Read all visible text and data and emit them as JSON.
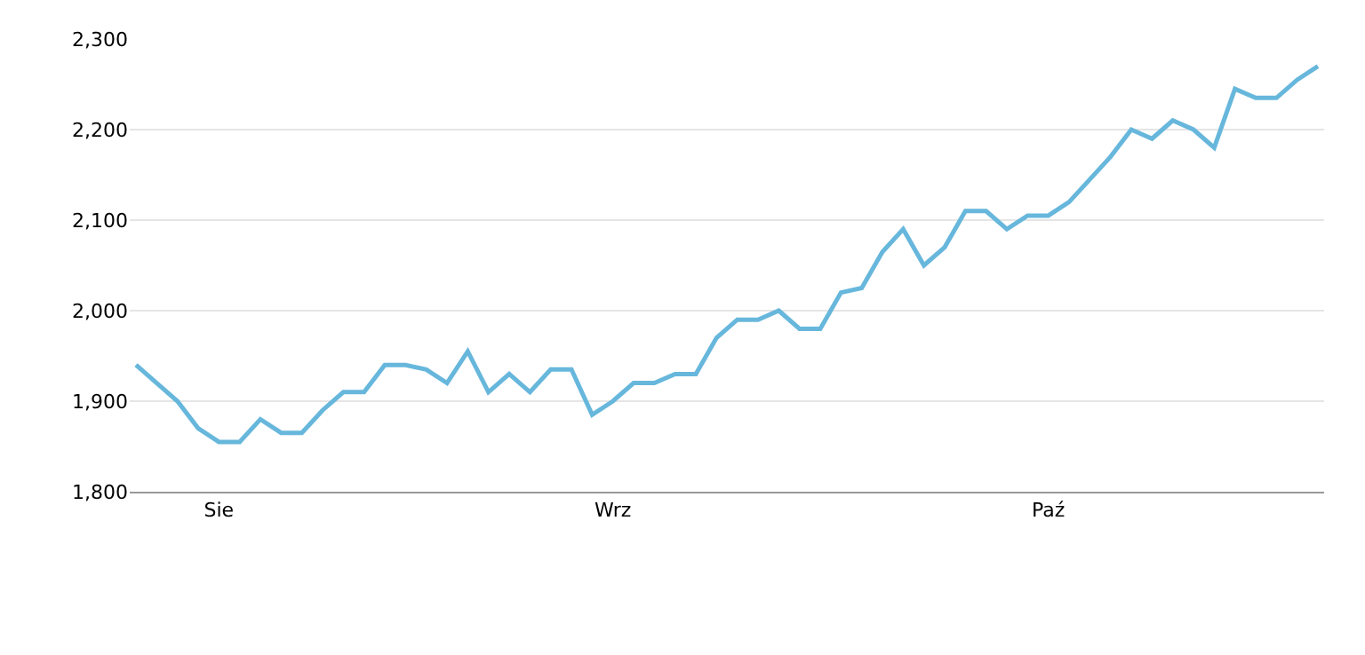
{
  "chart_data": {
    "type": "line",
    "categories": [
      null,
      null,
      null,
      null,
      "Sie",
      null,
      null,
      null,
      null,
      null,
      null,
      null,
      null,
      null,
      null,
      null,
      null,
      null,
      null,
      null,
      null,
      null,
      null,
      "Wrz",
      null,
      null,
      null,
      null,
      null,
      null,
      null,
      null,
      null,
      null,
      null,
      null,
      null,
      null,
      null,
      null,
      null,
      null,
      null,
      null,
      "Paź",
      null,
      null,
      null,
      null,
      null,
      null,
      null,
      null,
      null,
      null,
      null,
      null,
      null
    ],
    "series": [
      {
        "color": "#67b7dc",
        "values": [
          1940,
          1920,
          1900,
          1870,
          1855,
          1855,
          1880,
          1865,
          1865,
          1890,
          1910,
          1910,
          1940,
          1940,
          1935,
          1920,
          1955,
          1910,
          1930,
          1910,
          1935,
          1935,
          1885,
          1900,
          1920,
          1920,
          1930,
          1930,
          1970,
          1990,
          1990,
          2000,
          1980,
          1980,
          2020,
          2025,
          2065,
          2090,
          2050,
          2070,
          2110,
          2110,
          2090,
          2105,
          2105,
          2120,
          2145,
          2170,
          2200,
          2190,
          2210,
          2200,
          2180,
          2245,
          2235,
          2235,
          2255,
          2270
        ]
      }
    ],
    "ylim": [
      1800,
      2300
    ],
    "yticks": [
      {
        "value": 1800,
        "label": "1,800"
      },
      {
        "value": 1900,
        "label": "1,900"
      },
      {
        "value": 2000,
        "label": "2,000"
      },
      {
        "value": 2100,
        "label": "2,100"
      },
      {
        "value": 2200,
        "label": "2,200"
      },
      {
        "value": 2300,
        "label": "2,300"
      }
    ],
    "grid": "y",
    "marker": "none",
    "line_style": "solid"
  }
}
